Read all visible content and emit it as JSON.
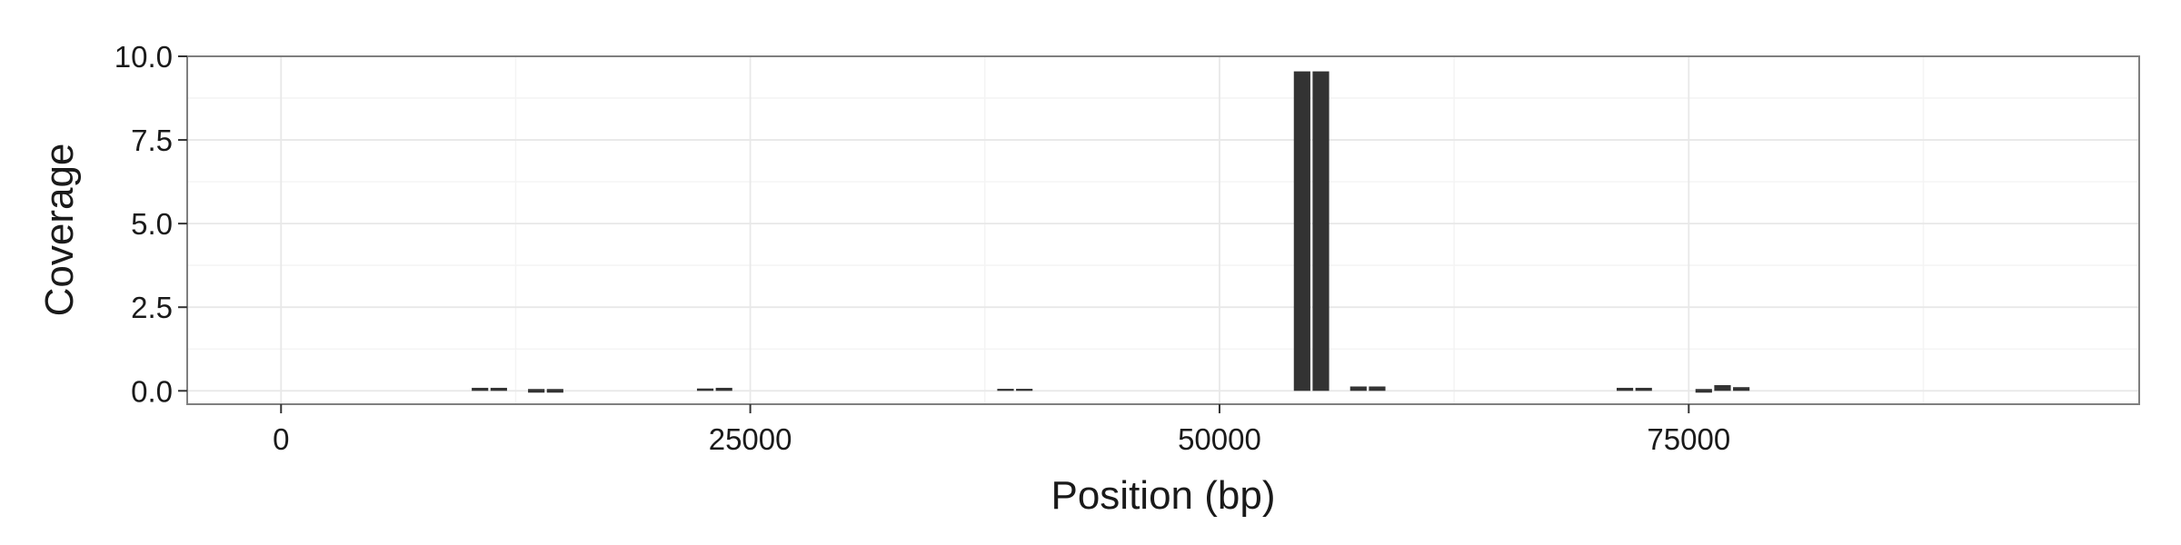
{
  "chart_data": {
    "type": "bar",
    "title": "",
    "xlabel": "Position (bp)",
    "ylabel": "Coverage",
    "xlim": [
      -5000,
      99000
    ],
    "ylim": [
      -0.4,
      10.0
    ],
    "x_ticks": [
      0,
      25000,
      50000,
      75000
    ],
    "x_tick_labels": [
      "0",
      "25000",
      "50000",
      "75000"
    ],
    "y_ticks": [
      0.0,
      2.5,
      5.0,
      7.5,
      10.0
    ],
    "y_tick_labels": [
      "0.0",
      "2.5",
      "5.0",
      "7.5",
      "10.0"
    ],
    "grid": true,
    "legend": "none",
    "bar_width": 880,
    "bar_color": "#333333",
    "points": [
      {
        "x": 10600,
        "y": 0.09
      },
      {
        "x": 11600,
        "y": 0.09
      },
      {
        "x": 13600,
        "y": 0.05
      },
      {
        "x": 14600,
        "y": 0.05
      },
      {
        "x": 22600,
        "y": 0.07
      },
      {
        "x": 23600,
        "y": 0.09
      },
      {
        "x": 38600,
        "y": 0.06
      },
      {
        "x": 39600,
        "y": 0.06
      },
      {
        "x": 54400,
        "y": 9.55
      },
      {
        "x": 55400,
        "y": 9.55
      },
      {
        "x": 57400,
        "y": 0.13
      },
      {
        "x": 58400,
        "y": 0.13
      },
      {
        "x": 71600,
        "y": 0.09
      },
      {
        "x": 72600,
        "y": 0.09
      },
      {
        "x": 75800,
        "y": 0.04
      },
      {
        "x": 76800,
        "y": 0.17
      },
      {
        "x": 77800,
        "y": 0.11
      }
    ]
  }
}
